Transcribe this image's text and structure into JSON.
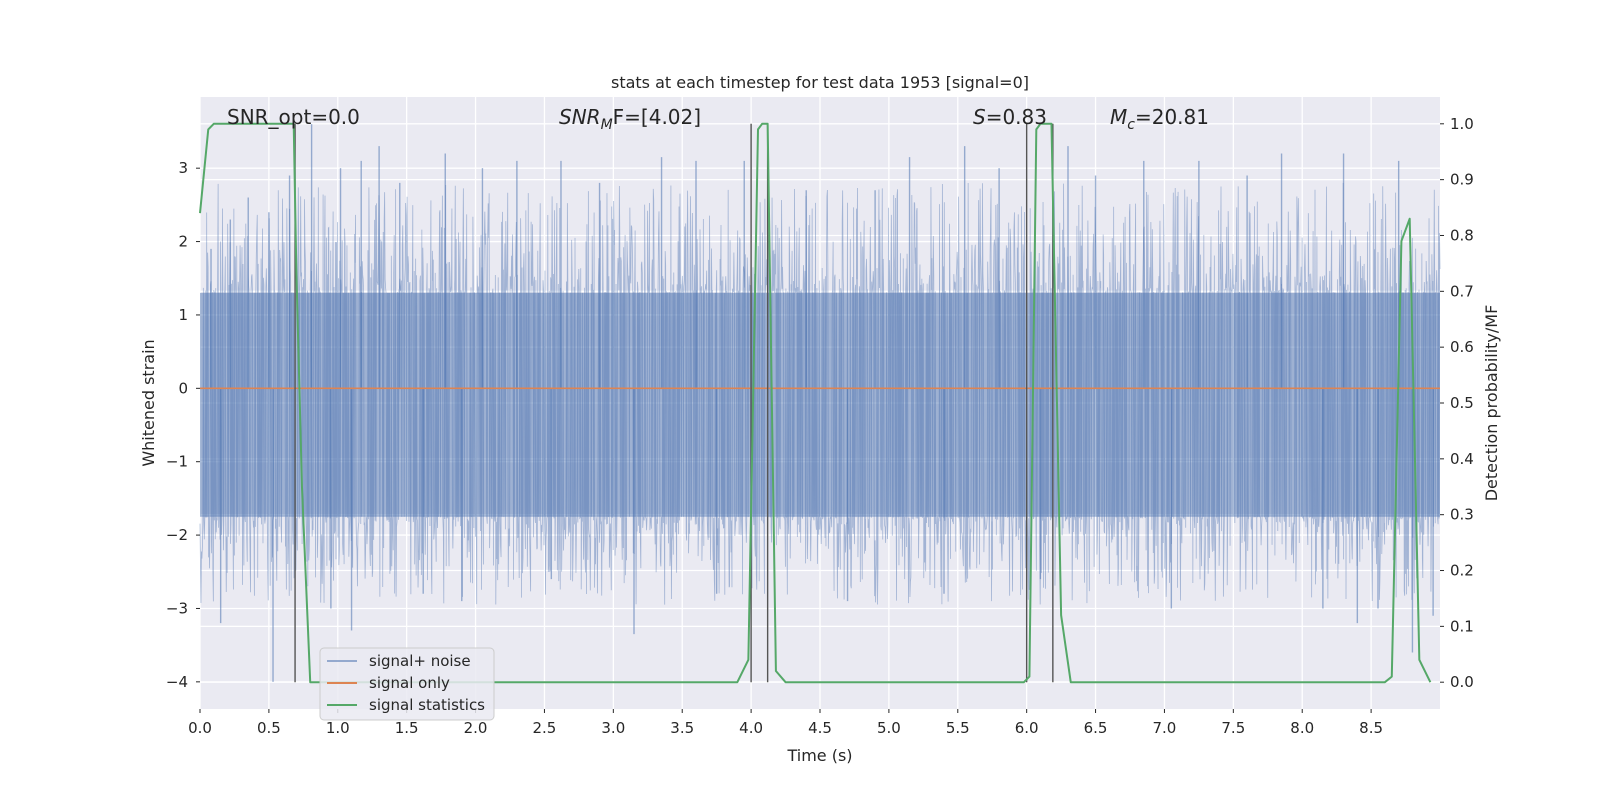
{
  "chart_data": {
    "type": "line",
    "title": "stats at each timestep for test data 1953 [signal=0]",
    "xlabel": "Time (s)",
    "ylabel_left": "Whitened strain",
    "ylabel_right": "Detection probability/MF",
    "xlim": [
      0.0,
      9.0
    ],
    "ylim_left": [
      -4.37,
      3.97
    ],
    "ylim_right": [
      -0.048,
      1.048
    ],
    "x_ticks": [
      "0.0",
      "0.5",
      "1.0",
      "1.5",
      "2.0",
      "2.5",
      "3.0",
      "3.5",
      "4.0",
      "4.5",
      "5.0",
      "5.5",
      "6.0",
      "6.5",
      "7.0",
      "7.5",
      "8.0",
      "8.5"
    ],
    "y_ticks_left": [
      "−4",
      "−3",
      "−2",
      "−1",
      "0",
      "1",
      "2",
      "3"
    ],
    "y_ticks_right": [
      "0.0",
      "0.1",
      "0.2",
      "0.3",
      "0.4",
      "0.5",
      "0.6",
      "0.7",
      "0.8",
      "0.9",
      "1.0"
    ],
    "grid": true,
    "legend_position": "lower-left",
    "annotations": {
      "snr_opt": "SNR_opt=0.0",
      "snr_mf_base": "SNR",
      "snr_mf_sub": "M",
      "snr_mf_rest": "F=[4.02]",
      "s_var": "S",
      "s_rest": "=0.83",
      "mc_base": "M",
      "mc_sub": "c",
      "mc_rest": "=20.81"
    },
    "series": [
      {
        "name": "signal+ noise",
        "color": "#4c72b0",
        "axis": "left",
        "style": "dense-noise",
        "typical_range": [
          -1.75,
          1.3
        ],
        "spikes": [
          {
            "x": 0.08,
            "y": 1.9
          },
          {
            "x": 0.15,
            "y": -3.2
          },
          {
            "x": 0.22,
            "y": 2.3
          },
          {
            "x": 0.35,
            "y": 2.6
          },
          {
            "x": 0.5,
            "y": 2.4
          },
          {
            "x": 0.53,
            "y": -4.0
          },
          {
            "x": 0.65,
            "y": 2.9
          },
          {
            "x": 0.81,
            "y": 3.6
          },
          {
            "x": 0.95,
            "y": -3.0
          },
          {
            "x": 1.02,
            "y": 3.0
          },
          {
            "x": 1.1,
            "y": -3.3
          },
          {
            "x": 1.17,
            "y": 3.1
          },
          {
            "x": 1.3,
            "y": 3.3
          },
          {
            "x": 1.45,
            "y": 2.8
          },
          {
            "x": 1.62,
            "y": -2.8
          },
          {
            "x": 1.78,
            "y": 3.2
          },
          {
            "x": 1.9,
            "y": -2.9
          },
          {
            "x": 2.05,
            "y": 3.0
          },
          {
            "x": 2.3,
            "y": 3.1
          },
          {
            "x": 2.55,
            "y": -2.6
          },
          {
            "x": 2.62,
            "y": 3.1
          },
          {
            "x": 2.9,
            "y": 2.8
          },
          {
            "x": 3.15,
            "y": -3.35
          },
          {
            "x": 3.35,
            "y": 3.15
          },
          {
            "x": 3.6,
            "y": 3.1
          },
          {
            "x": 3.75,
            "y": -2.8
          },
          {
            "x": 3.95,
            "y": 3.1
          },
          {
            "x": 4.4,
            "y": 2.7
          },
          {
            "x": 4.7,
            "y": -2.9
          },
          {
            "x": 4.9,
            "y": 2.7
          },
          {
            "x": 5.15,
            "y": 3.15
          },
          {
            "x": 5.4,
            "y": -2.8
          },
          {
            "x": 5.55,
            "y": 3.3
          },
          {
            "x": 5.8,
            "y": 3.0
          },
          {
            "x": 6.1,
            "y": -2.6
          },
          {
            "x": 6.3,
            "y": 3.3
          },
          {
            "x": 6.5,
            "y": 2.9
          },
          {
            "x": 6.85,
            "y": 3.1
          },
          {
            "x": 7.05,
            "y": -3.0
          },
          {
            "x": 7.25,
            "y": 3.1
          },
          {
            "x": 7.6,
            "y": 2.9
          },
          {
            "x": 7.85,
            "y": 3.2
          },
          {
            "x": 8.15,
            "y": -3.0
          },
          {
            "x": 8.3,
            "y": 3.2
          },
          {
            "x": 8.4,
            "y": -3.2
          },
          {
            "x": 8.55,
            "y": -3.0
          },
          {
            "x": 8.7,
            "y": 3.1
          },
          {
            "x": 8.8,
            "y": -3.6
          },
          {
            "x": 8.95,
            "y": -3.1
          }
        ]
      },
      {
        "name": "signal only",
        "color": "#dd8452",
        "axis": "left",
        "x": [
          0.0,
          9.0
        ],
        "y": [
          0.0,
          0.0
        ]
      },
      {
        "name": "signal statistics",
        "color": "#55a868",
        "axis": "right",
        "x": [
          0.0,
          0.06,
          0.1,
          0.55,
          0.68,
          0.7,
          0.74,
          0.8,
          3.9,
          3.98,
          4.05,
          4.08,
          4.12,
          4.18,
          4.25,
          5.98,
          6.02,
          6.07,
          6.1,
          6.18,
          6.25,
          6.32,
          8.6,
          8.65,
          8.72,
          8.78,
          8.85,
          8.93
        ],
        "y": [
          0.84,
          0.99,
          1.0,
          1.0,
          1.0,
          0.73,
          0.35,
          0.0,
          0.0,
          0.04,
          0.99,
          1.0,
          1.0,
          0.02,
          0.0,
          0.0,
          0.01,
          0.99,
          1.0,
          1.0,
          0.12,
          0.0,
          0.0,
          0.01,
          0.79,
          0.83,
          0.04,
          0.0
        ]
      }
    ],
    "vertical_lines": {
      "color": "#555555",
      "x": [
        0.69,
        4.0,
        4.12,
        6.0,
        6.19
      ]
    }
  }
}
